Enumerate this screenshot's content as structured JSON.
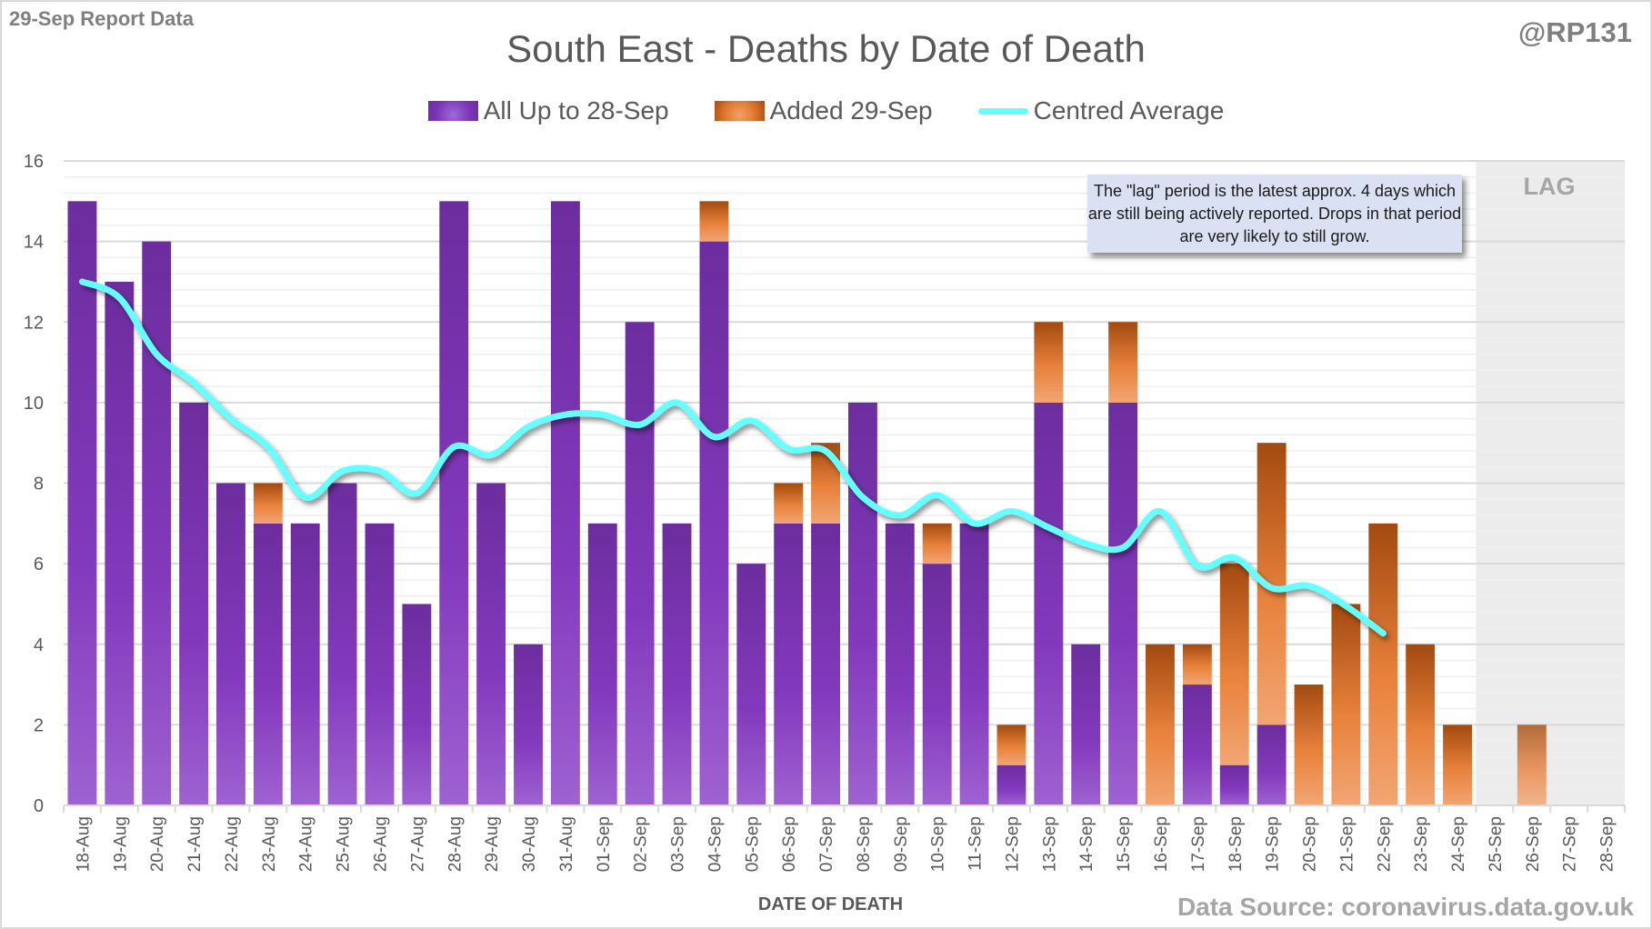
{
  "header": {
    "report_label": "29-Sep Report Data",
    "handle": "@RP131",
    "source": "Data Source: coronavirus.data.gov.uk"
  },
  "annotation": {
    "note": "The \"lag\" period is the latest approx. 4 days which are still being actively reported. Drops in that period are very likely to still grow.",
    "lag_label": "LAG"
  },
  "colors": {
    "existing": "#7b35b5",
    "added": "#e07a32",
    "average": "#66ffff",
    "lag_region": "#ececec"
  },
  "chart_data": {
    "type": "bar",
    "stacked": true,
    "title": "South East - Deaths by Date of Death",
    "xlabel": "DATE OF DEATH",
    "ylabel": "",
    "ylim": [
      0,
      16
    ],
    "yticks": [
      0,
      2,
      4,
      6,
      8,
      10,
      12,
      14,
      16
    ],
    "grid": true,
    "legend_position": "top-center",
    "categories": [
      "18-Aug",
      "19-Aug",
      "20-Aug",
      "21-Aug",
      "22-Aug",
      "23-Aug",
      "24-Aug",
      "25-Aug",
      "26-Aug",
      "27-Aug",
      "28-Aug",
      "29-Aug",
      "30-Aug",
      "31-Aug",
      "01-Sep",
      "02-Sep",
      "03-Sep",
      "04-Sep",
      "05-Sep",
      "06-Sep",
      "07-Sep",
      "08-Sep",
      "09-Sep",
      "10-Sep",
      "11-Sep",
      "12-Sep",
      "13-Sep",
      "14-Sep",
      "15-Sep",
      "16-Sep",
      "17-Sep",
      "18-Sep",
      "19-Sep",
      "20-Sep",
      "21-Sep",
      "22-Sep",
      "23-Sep",
      "24-Sep",
      "25-Sep",
      "26-Sep",
      "27-Sep",
      "28-Sep"
    ],
    "series": [
      {
        "name": "All Up to 28-Sep",
        "kind": "bar",
        "values": [
          15,
          13,
          14,
          10,
          8,
          7,
          7,
          8,
          7,
          5,
          15,
          8,
          4,
          15,
          7,
          12,
          7,
          14,
          6,
          7,
          7,
          10,
          7,
          6,
          7,
          1,
          10,
          4,
          10,
          0,
          3,
          1,
          2,
          0,
          0,
          0,
          0,
          0,
          0,
          0,
          0,
          0
        ]
      },
      {
        "name": "Added 29-Sep",
        "kind": "bar",
        "values": [
          0,
          0,
          0,
          0,
          0,
          1,
          0,
          0,
          0,
          0,
          0,
          0,
          0,
          0,
          0,
          0,
          0,
          1,
          0,
          1,
          2,
          0,
          0,
          1,
          0,
          1,
          2,
          0,
          2,
          4,
          1,
          5,
          7,
          3,
          5,
          7,
          4,
          2,
          0,
          2,
          0,
          0
        ]
      },
      {
        "name": "Centred Average",
        "kind": "line",
        "values": [
          13.0,
          12.6,
          11.2,
          10.5,
          9.6,
          8.9,
          7.65,
          8.3,
          8.3,
          7.75,
          8.9,
          8.7,
          9.4,
          9.7,
          9.7,
          9.45,
          10.0,
          9.15,
          9.55,
          8.85,
          8.8,
          7.65,
          7.2,
          7.7,
          7.0,
          7.3,
          6.9,
          6.5,
          6.4,
          7.3,
          5.95,
          6.15,
          5.4,
          5.45,
          4.95,
          4.27,
          null,
          null,
          null,
          null,
          null,
          null
        ]
      }
    ],
    "lag_categories": [
      "25-Sep",
      "26-Sep",
      "27-Sep",
      "28-Sep"
    ]
  }
}
